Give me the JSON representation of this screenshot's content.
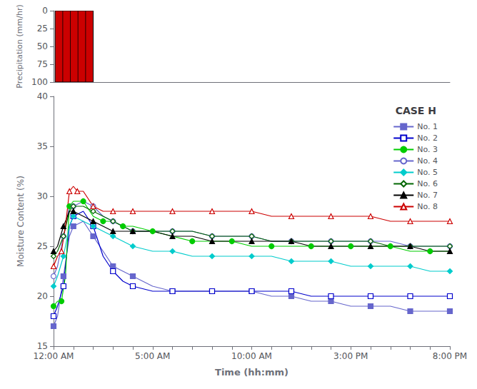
{
  "chart_data": [
    {
      "type": "bar",
      "ylabel": "Precipitation (mm/hr)",
      "xlim": [
        0,
        20
      ],
      "ylim": [
        100,
        0
      ],
      "yticks": [
        0,
        25,
        50,
        75,
        100
      ],
      "x_start": [
        0.08
      ],
      "x_end": [
        2.0
      ],
      "values": [
        100
      ],
      "color": "#cc0000",
      "tick_labels": "y",
      "grid": false
    },
    {
      "type": "line",
      "title": "CASE H",
      "xlabel": "Time (hh:mm)",
      "ylabel": "Moisture Content (%)",
      "xlim": [
        0,
        20
      ],
      "xticks": [
        {
          "value": 0,
          "label": "12:00 AM"
        },
        {
          "value": 1,
          "label": null
        },
        {
          "value": 2,
          "label": null
        },
        {
          "value": 3,
          "label": null
        },
        {
          "value": 4,
          "label": null
        },
        {
          "value": 5,
          "label": "5:00 AM"
        },
        {
          "value": 6,
          "label": null
        },
        {
          "value": 7,
          "label": null
        },
        {
          "value": 8,
          "label": null
        },
        {
          "value": 9,
          "label": null
        },
        {
          "value": 10,
          "label": "10:00 AM"
        },
        {
          "value": 11,
          "label": null
        },
        {
          "value": 12,
          "label": null
        },
        {
          "value": 13,
          "label": null
        },
        {
          "value": 14,
          "label": null
        },
        {
          "value": 15,
          "label": "3:00 PM"
        },
        {
          "value": 16,
          "label": null
        },
        {
          "value": 17,
          "label": null
        },
        {
          "value": 18,
          "label": null
        },
        {
          "value": 19,
          "label": null
        },
        {
          "value": 20,
          "label": "8:00 PM"
        }
      ],
      "ylim": [
        15,
        40
      ],
      "yticks": [
        15,
        20,
        25,
        30,
        35,
        40
      ],
      "legend": "upper right",
      "grid": false,
      "series": [
        {
          "name": "No. 1",
          "color": "#6666cc",
          "marker": "square",
          "x": [
            0.0,
            0.2,
            0.5,
            0.8,
            1.0,
            1.5,
            2.0,
            2.5,
            3.0,
            3.5,
            4.0,
            5.0,
            6.0,
            7.0,
            8.0,
            9.0,
            10.0,
            11.0,
            12.0,
            13.0,
            14.0,
            15.0,
            16.0,
            17.0,
            18.0,
            19.0,
            20.0
          ],
          "values": [
            17.0,
            18.0,
            22.0,
            26.0,
            27.0,
            27.5,
            26.0,
            24.5,
            23.0,
            22.5,
            22.0,
            21.0,
            20.5,
            20.5,
            20.5,
            20.5,
            20.5,
            20.0,
            20.0,
            19.5,
            19.5,
            19.0,
            19.0,
            19.0,
            18.5,
            18.5,
            18.5
          ]
        },
        {
          "name": "No. 2",
          "color": "#0000cc",
          "marker": "square-open",
          "x": [
            0.0,
            0.2,
            0.5,
            0.8,
            1.0,
            1.5,
            2.0,
            2.5,
            3.0,
            3.5,
            4.0,
            5.0,
            6.0,
            7.0,
            8.0,
            9.0,
            10.0,
            11.0,
            12.0,
            13.0,
            14.0,
            15.0,
            16.0,
            17.0,
            18.0,
            19.0,
            20.0
          ],
          "values": [
            18.0,
            19.0,
            21.0,
            27.0,
            28.0,
            28.5,
            27.0,
            24.0,
            22.5,
            21.5,
            21.0,
            20.5,
            20.5,
            20.5,
            20.5,
            20.5,
            20.5,
            20.5,
            20.5,
            20.0,
            20.0,
            20.0,
            20.0,
            20.0,
            20.0,
            20.0,
            20.0
          ]
        },
        {
          "name": "No. 3",
          "color": "#00cc00",
          "marker": "circle",
          "x": [
            0.0,
            0.2,
            0.4,
            0.6,
            0.8,
            1.0,
            1.5,
            2.0,
            2.5,
            3.0,
            3.5,
            4.0,
            5.0,
            6.0,
            7.0,
            8.0,
            9.0,
            10.0,
            11.0,
            12.0,
            13.0,
            14.0,
            15.0,
            16.0,
            17.0,
            18.0,
            19.0,
            20.0
          ],
          "values": [
            19.0,
            19.5,
            19.5,
            22.0,
            29.0,
            29.5,
            29.5,
            28.0,
            27.5,
            27.5,
            27.0,
            27.0,
            26.5,
            26.0,
            25.5,
            25.5,
            25.5,
            25.0,
            25.0,
            25.0,
            25.0,
            25.0,
            25.0,
            25.0,
            25.0,
            24.5,
            24.5,
            24.5
          ]
        },
        {
          "name": "No. 4",
          "color": "#6666cc",
          "marker": "circle-open",
          "x": [
            0.0,
            0.2,
            0.5,
            0.8,
            1.0,
            1.5,
            2.0,
            2.5,
            3.0,
            3.5,
            4.0,
            5.0,
            6.0,
            7.0,
            8.0,
            9.0,
            10.0,
            11.0,
            12.0,
            13.0,
            14.0,
            15.0,
            16.0,
            17.0,
            18.0,
            19.0,
            20.0
          ],
          "values": [
            22.0,
            23.0,
            26.0,
            29.0,
            29.0,
            29.5,
            29.0,
            28.0,
            27.5,
            27.0,
            26.5,
            26.5,
            26.5,
            26.5,
            26.0,
            26.0,
            26.0,
            25.5,
            25.5,
            25.5,
            25.5,
            25.5,
            25.5,
            25.5,
            25.0,
            25.0,
            25.0
          ]
        },
        {
          "name": "No. 5",
          "color": "#00cccc",
          "marker": "diamond",
          "x": [
            0.0,
            0.2,
            0.5,
            0.8,
            1.0,
            1.5,
            2.0,
            2.5,
            3.0,
            3.5,
            4.0,
            5.0,
            6.0,
            7.0,
            8.0,
            9.0,
            10.0,
            11.0,
            12.0,
            13.0,
            14.0,
            15.0,
            16.0,
            17.0,
            18.0,
            19.0,
            20.0
          ],
          "values": [
            21.0,
            22.0,
            24.0,
            27.0,
            28.0,
            27.5,
            27.0,
            26.5,
            26.0,
            25.5,
            25.0,
            24.5,
            24.5,
            24.0,
            24.0,
            24.0,
            24.0,
            24.0,
            23.5,
            23.5,
            23.5,
            23.0,
            23.0,
            23.0,
            23.0,
            22.5,
            22.5
          ]
        },
        {
          "name": "No. 6",
          "color": "#006600",
          "marker": "diamond-open",
          "x": [
            0.0,
            0.2,
            0.5,
            0.8,
            1.0,
            1.5,
            2.0,
            2.5,
            3.0,
            3.5,
            4.0,
            5.0,
            6.0,
            7.0,
            8.0,
            9.0,
            10.0,
            11.0,
            12.0,
            13.0,
            14.0,
            15.0,
            16.0,
            17.0,
            18.0,
            19.0,
            20.0
          ],
          "values": [
            24.0,
            24.5,
            26.0,
            28.5,
            29.0,
            29.0,
            28.5,
            28.0,
            27.5,
            27.0,
            26.5,
            26.5,
            26.5,
            26.5,
            26.0,
            26.0,
            26.0,
            25.5,
            25.5,
            25.5,
            25.5,
            25.5,
            25.5,
            25.0,
            25.0,
            25.0,
            25.0
          ]
        },
        {
          "name": "No. 7",
          "color": "#000000",
          "marker": "triangle",
          "x": [
            0.0,
            0.2,
            0.5,
            0.8,
            1.0,
            1.5,
            2.0,
            2.5,
            3.0,
            3.5,
            4.0,
            5.0,
            6.0,
            7.0,
            8.0,
            9.0,
            10.0,
            11.0,
            12.0,
            13.0,
            14.0,
            15.0,
            16.0,
            17.0,
            18.0,
            19.0,
            20.0
          ],
          "values": [
            24.5,
            25.0,
            27.0,
            28.5,
            28.5,
            28.0,
            27.5,
            27.0,
            26.5,
            26.5,
            26.5,
            26.5,
            26.0,
            26.0,
            25.5,
            25.5,
            25.5,
            25.5,
            25.5,
            25.0,
            25.0,
            25.0,
            25.0,
            25.0,
            25.0,
            24.5,
            24.5
          ]
        },
        {
          "name": "No. 8",
          "color": "#cc0000",
          "marker": "triangle-open",
          "x": [
            0.0,
            0.2,
            0.4,
            0.6,
            0.8,
            1.0,
            1.2,
            1.5,
            2.0,
            2.5,
            3.0,
            3.5,
            4.0,
            5.0,
            6.0,
            7.0,
            8.0,
            9.0,
            10.0,
            11.0,
            12.0,
            13.0,
            14.0,
            15.0,
            16.0,
            17.0,
            18.0,
            19.0,
            20.0
          ],
          "values": [
            23.0,
            24.0,
            24.5,
            27.0,
            30.5,
            31.0,
            30.5,
            30.5,
            29.0,
            28.5,
            28.5,
            28.5,
            28.5,
            28.5,
            28.5,
            28.5,
            28.5,
            28.5,
            28.5,
            28.0,
            28.0,
            28.0,
            28.0,
            28.0,
            28.0,
            27.5,
            27.5,
            27.5,
            27.5
          ]
        }
      ]
    }
  ]
}
